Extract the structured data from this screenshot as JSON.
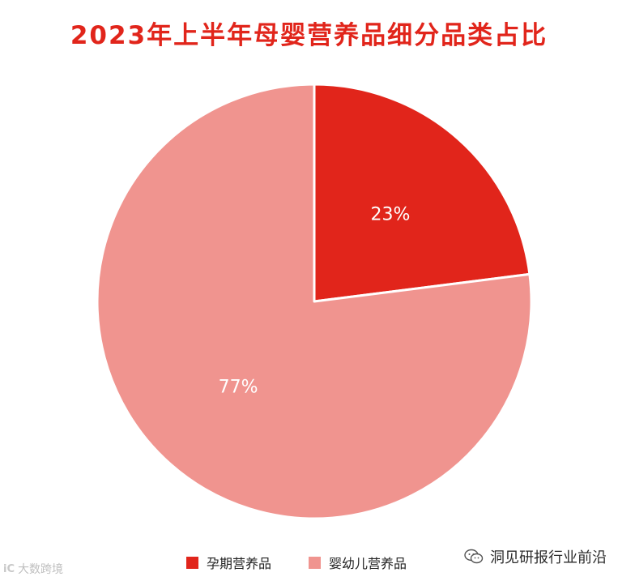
{
  "chart_data": {
    "type": "pie",
    "title": "2023年上半年母婴营养品细分品类占比",
    "categories": [
      "孕期营养品",
      "婴幼儿营养品"
    ],
    "values": [
      23,
      77
    ],
    "data_labels": [
      "23%",
      "77%"
    ],
    "colors": [
      "#e1251b",
      "#f0948f"
    ],
    "legend_position": "bottom"
  },
  "watermarks": {
    "left_logo": "iC",
    "left_text": "大数跨境",
    "right_icon": "wechat-icon",
    "right_text": "洞见研报行业前沿"
  }
}
